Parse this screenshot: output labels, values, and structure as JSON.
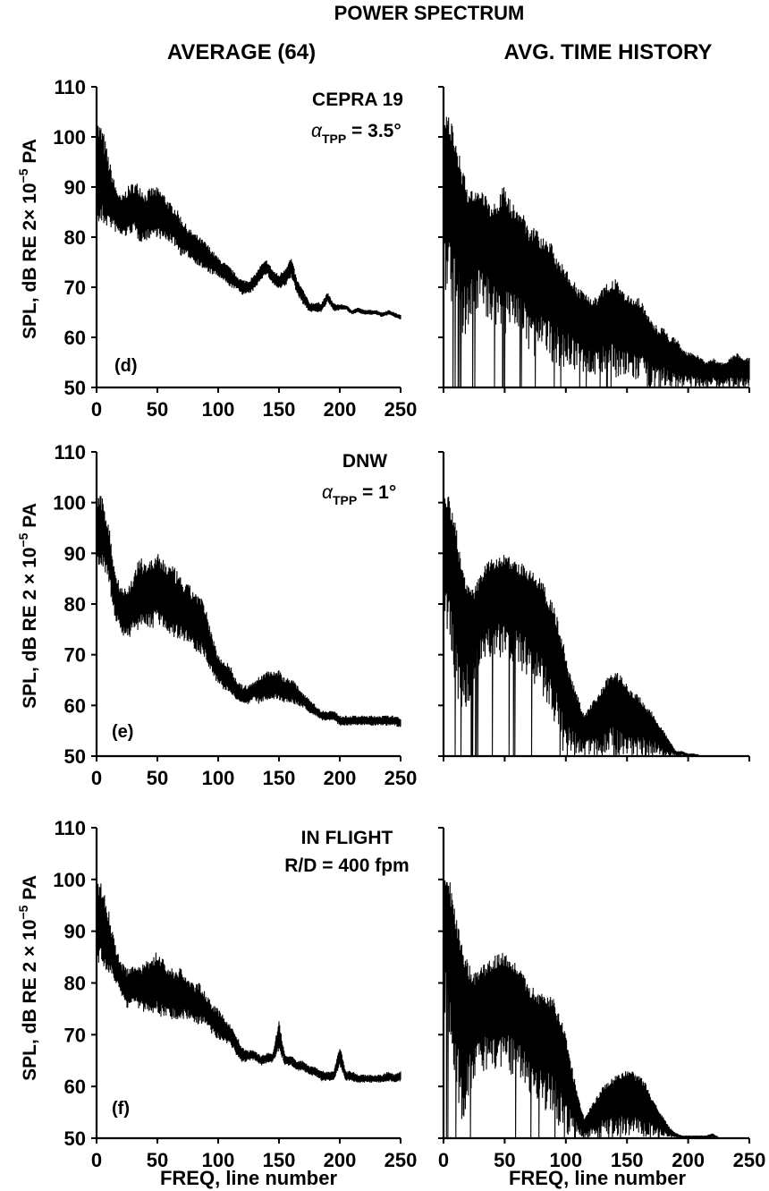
{
  "figure": {
    "title": "POWER SPECTRUM",
    "left_column_title": "AVERAGE (64)",
    "right_column_title": "AVG. TIME HISTORY",
    "x_axis_label": "FREQ, line number",
    "y_axis_label_prefix": "SPL, dB RE 2",
    "y_axis_label_times": "×",
    "y_axis_label_base": "10",
    "y_axis_label_exp": "−5",
    "y_axis_label_suffix": "PA"
  },
  "rows": [
    {
      "panel_letter": "(d)",
      "annotation_line1": "CEPRA 19",
      "annotation_alpha": "α",
      "annotation_sub": "TPP",
      "annotation_value": " = 3.5°"
    },
    {
      "panel_letter": "(e)",
      "annotation_line1": "DNW",
      "annotation_alpha": "α",
      "annotation_sub": "TPP",
      "annotation_value": " = 1°"
    },
    {
      "panel_letter": "(f)",
      "annotation_line1": "IN FLIGHT",
      "annotation_line2": "R/D = 400 fpm"
    }
  ],
  "chart_data": [
    {
      "type": "line",
      "panel": "(d) average",
      "x_label": "FREQ, line number",
      "y_label": "SPL, dB RE 2 × 10−5 PA",
      "xlim": [
        0,
        250
      ],
      "ylim": [
        50,
        110
      ],
      "x_ticks": [
        "0",
        "50",
        "100",
        "150",
        "200",
        "250"
      ],
      "y_ticks": [
        "50",
        "60",
        "70",
        "80",
        "90",
        "100",
        "110"
      ],
      "series": [
        {
          "x": [
            0,
            5,
            10,
            15,
            20,
            25,
            30,
            35,
            40,
            45,
            50,
            55,
            60,
            65,
            70,
            75,
            80,
            85,
            90,
            95,
            100,
            105,
            110,
            115,
            120,
            125,
            130,
            135,
            140,
            145,
            150,
            155,
            160,
            165,
            170,
            175,
            180,
            185,
            190,
            195,
            200,
            205,
            210,
            215,
            220,
            225,
            230,
            235,
            240,
            245,
            250
          ],
          "center": [
            93,
            92,
            89,
            86,
            84,
            85,
            86,
            85,
            84,
            85,
            85,
            84,
            83,
            82,
            80,
            79,
            78,
            77,
            76,
            75,
            74,
            73,
            72,
            71,
            70,
            70,
            71,
            73,
            74,
            72,
            71,
            72,
            74,
            70,
            68,
            66,
            66,
            66,
            68,
            66,
            66,
            66,
            65,
            65.5,
            65,
            65,
            65,
            64.5,
            65,
            64.5,
            64
          ],
          "halfwidth": [
            11,
            10,
            7,
            5,
            4,
            5,
            5,
            6,
            5,
            5,
            5,
            5,
            4,
            4,
            4,
            3,
            3,
            3,
            3,
            2.5,
            2,
            2,
            2,
            1.5,
            1.5,
            1.5,
            1.5,
            1.5,
            1.5,
            1.5,
            1.5,
            2,
            2,
            1.5,
            1.5,
            1,
            1,
            1,
            1,
            0.8,
            0.6,
            0.5,
            0.5,
            0.5,
            0.5,
            0.5,
            0.5,
            0.5,
            0.5,
            0.5,
            0.5
          ]
        }
      ]
    },
    {
      "type": "line",
      "panel": "(d) avg. time history",
      "x_label": "",
      "xlim": [
        0,
        250
      ],
      "ylim": [
        50,
        110
      ],
      "x_ticks": [],
      "y_ticks": [],
      "series": [
        {
          "x": [
            0,
            5,
            10,
            15,
            20,
            25,
            30,
            35,
            40,
            45,
            50,
            55,
            60,
            65,
            70,
            75,
            80,
            85,
            90,
            95,
            100,
            105,
            110,
            115,
            120,
            125,
            130,
            135,
            140,
            145,
            150,
            155,
            160,
            165,
            170,
            175,
            180,
            185,
            190,
            195,
            200,
            205,
            210,
            215,
            220,
            225,
            230,
            235,
            240,
            245,
            250
          ],
          "upper": [
            104,
            104,
            100,
            94,
            90,
            89,
            90,
            88,
            86,
            88,
            91,
            87,
            86,
            85,
            82,
            82,
            80,
            80,
            78,
            75,
            74,
            72,
            70,
            69,
            68,
            68,
            70,
            71,
            72,
            70,
            69,
            68,
            68,
            66,
            64,
            62,
            62,
            60,
            60,
            58,
            57,
            57,
            56,
            55,
            56,
            55,
            55,
            56,
            57,
            56,
            56
          ],
          "lower": [
            70,
            68,
            62,
            58,
            62,
            64,
            66,
            64,
            63,
            62,
            60,
            61,
            62,
            58,
            57,
            56,
            56,
            55,
            55,
            54,
            54,
            54,
            53,
            53,
            52,
            52,
            52,
            52,
            52,
            52,
            51,
            51,
            51,
            50,
            50,
            50,
            50,
            50,
            50,
            50,
            50,
            50,
            50,
            50,
            50,
            50,
            50,
            50,
            50,
            50,
            50
          ]
        }
      ]
    },
    {
      "type": "line",
      "panel": "(e) average",
      "x_label": "FREQ, line number",
      "y_label": "SPL, dB RE 2 × 10−5 PA",
      "xlim": [
        0,
        250
      ],
      "ylim": [
        50,
        110
      ],
      "x_ticks": [
        "0",
        "50",
        "100",
        "150",
        "200",
        "250"
      ],
      "y_ticks": [
        "50",
        "60",
        "70",
        "80",
        "90",
        "100",
        "110"
      ],
      "series": [
        {
          "x": [
            0,
            5,
            10,
            15,
            20,
            25,
            30,
            35,
            40,
            45,
            50,
            55,
            60,
            65,
            70,
            75,
            80,
            85,
            90,
            95,
            100,
            105,
            110,
            115,
            120,
            125,
            130,
            135,
            140,
            145,
            150,
            155,
            160,
            165,
            170,
            175,
            180,
            185,
            190,
            195,
            200,
            205,
            210,
            215,
            220,
            225,
            230,
            235,
            240,
            245,
            250
          ],
          "center": [
            95,
            94,
            90,
            82,
            79,
            78,
            80,
            82,
            82,
            82,
            83,
            82,
            81,
            80,
            79,
            78,
            77,
            76,
            74,
            70,
            67,
            66,
            65,
            63,
            62,
            62,
            63,
            63,
            64,
            64,
            64,
            63,
            63,
            62,
            61,
            60,
            59,
            58,
            58,
            58,
            57,
            57,
            57,
            57,
            57,
            57,
            57,
            57,
            57,
            57,
            56.5
          ],
          "halfwidth": [
            7,
            7,
            6,
            5,
            5,
            5,
            6,
            7,
            7,
            7,
            7,
            7,
            7,
            7,
            6,
            6,
            6,
            6,
            5,
            4,
            3,
            3,
            3,
            2,
            2,
            2,
            2,
            3,
            3,
            3,
            3,
            2.5,
            2.5,
            2,
            1.5,
            1.5,
            1,
            1,
            1,
            1,
            1,
            1,
            1,
            1,
            1,
            1,
            1,
            1,
            1,
            1,
            1
          ]
        }
      ]
    },
    {
      "type": "line",
      "panel": "(e) avg. time history",
      "x_label": "",
      "xlim": [
        0,
        250
      ],
      "ylim": [
        50,
        110
      ],
      "x_ticks": [],
      "y_ticks": [],
      "series": [
        {
          "x": [
            0,
            5,
            10,
            15,
            20,
            25,
            30,
            35,
            40,
            45,
            50,
            55,
            60,
            65,
            70,
            75,
            80,
            85,
            90,
            95,
            100,
            105,
            110,
            115,
            120,
            125,
            130,
            135,
            140,
            145,
            150,
            155,
            160,
            165,
            170,
            175,
            180,
            185,
            190,
            195,
            200,
            205,
            210,
            215,
            220,
            225,
            230,
            235,
            240,
            245,
            250
          ],
          "upper": [
            102,
            101,
            96,
            88,
            84,
            83,
            86,
            88,
            89,
            89,
            90,
            89,
            88,
            88,
            87,
            86,
            85,
            82,
            80,
            76,
            70,
            65,
            62,
            58,
            60,
            62,
            64,
            66,
            67,
            66,
            64,
            63,
            62,
            60,
            59,
            57,
            55,
            53,
            51,
            51,
            50.5,
            50.5,
            50,
            50,
            50,
            50,
            50,
            50,
            50,
            50,
            50
          ],
          "lower": [
            80,
            70,
            62,
            56,
            60,
            64,
            66,
            68,
            70,
            70,
            68,
            69,
            68,
            66,
            66,
            64,
            62,
            60,
            57,
            52,
            50,
            50,
            50,
            50,
            50,
            50,
            50,
            50,
            50,
            50,
            50,
            50,
            50,
            50,
            50,
            50,
            50,
            50,
            50,
            50,
            50,
            50,
            50,
            50,
            50,
            50,
            50,
            50,
            50,
            50,
            50
          ]
        }
      ]
    },
    {
      "type": "line",
      "panel": "(f) average",
      "x_label": "FREQ, line number",
      "y_label": "SPL, dB RE 2 × 10−5 PA",
      "xlim": [
        0,
        250
      ],
      "ylim": [
        50,
        110
      ],
      "x_ticks": [
        "0",
        "50",
        "100",
        "150",
        "200",
        "250"
      ],
      "y_ticks": [
        "50",
        "60",
        "70",
        "80",
        "90",
        "100",
        "110"
      ],
      "series": [
        {
          "x": [
            0,
            5,
            10,
            15,
            20,
            25,
            30,
            35,
            40,
            45,
            50,
            55,
            60,
            65,
            70,
            75,
            80,
            85,
            90,
            95,
            100,
            105,
            110,
            115,
            120,
            125,
            130,
            135,
            140,
            145,
            150,
            155,
            160,
            165,
            170,
            175,
            180,
            185,
            190,
            195,
            200,
            205,
            210,
            215,
            220,
            225,
            230,
            235,
            240,
            245,
            250
          ],
          "center": [
            92,
            91,
            88,
            84,
            81,
            79,
            80,
            79,
            79,
            80,
            80,
            79,
            78,
            78,
            78,
            77,
            76,
            76,
            75,
            73,
            72,
            71,
            70,
            68,
            66,
            66,
            66,
            65,
            65.5,
            65.5,
            70,
            65,
            65,
            64,
            64,
            63,
            63,
            62,
            62,
            62,
            66,
            62,
            62,
            61.5,
            61.5,
            61.5,
            61.5,
            61.5,
            62,
            61.5,
            62
          ],
          "halfwidth": [
            8,
            8,
            6,
            4,
            3,
            4,
            4,
            4,
            5,
            6,
            6,
            6,
            5,
            5,
            5,
            4,
            4,
            4,
            3,
            3,
            3,
            2.5,
            2,
            2,
            1.5,
            1,
            1,
            1,
            1,
            1,
            3,
            1,
            1,
            1,
            1,
            1,
            1,
            1,
            1,
            1,
            2,
            1,
            1,
            0.8,
            0.8,
            0.8,
            0.8,
            0.8,
            1,
            0.8,
            1
          ]
        }
      ]
    },
    {
      "type": "line",
      "panel": "(f) avg. time history",
      "x_label": "FREQ, line number",
      "xlim": [
        0,
        250
      ],
      "ylim": [
        50,
        110
      ],
      "x_ticks": [
        "0",
        "50",
        "100",
        "150",
        "200",
        "250"
      ],
      "y_ticks": [],
      "series": [
        {
          "x": [
            0,
            5,
            10,
            15,
            20,
            25,
            30,
            35,
            40,
            45,
            50,
            55,
            60,
            65,
            70,
            75,
            80,
            85,
            90,
            95,
            100,
            105,
            110,
            115,
            120,
            125,
            130,
            135,
            140,
            145,
            150,
            155,
            160,
            165,
            170,
            175,
            180,
            185,
            190,
            195,
            200,
            205,
            210,
            215,
            220,
            225,
            230,
            235,
            240,
            245,
            250
          ],
          "upper": [
            101,
            100,
            94,
            88,
            84,
            82,
            83,
            84,
            85,
            86,
            86,
            85,
            84,
            82,
            80,
            79,
            78,
            78,
            77,
            74,
            70,
            64,
            58,
            54,
            56,
            58,
            60,
            61,
            62,
            63,
            63,
            63,
            62,
            61,
            58,
            56,
            54,
            52,
            51,
            50.5,
            50.5,
            50.5,
            50.5,
            50.5,
            51,
            50,
            50,
            50,
            50,
            50,
            50
          ],
          "lower": [
            76,
            66,
            58,
            52,
            56,
            60,
            62,
            62,
            62,
            62,
            62,
            62,
            60,
            60,
            58,
            58,
            56,
            55,
            54,
            52,
            51,
            50,
            50,
            50,
            50,
            50,
            50,
            50,
            50,
            50,
            50,
            50,
            50,
            50,
            50,
            50,
            50,
            50,
            50,
            50,
            50,
            50,
            50,
            50,
            50,
            50,
            50,
            50,
            50,
            50,
            50
          ]
        }
      ]
    }
  ]
}
